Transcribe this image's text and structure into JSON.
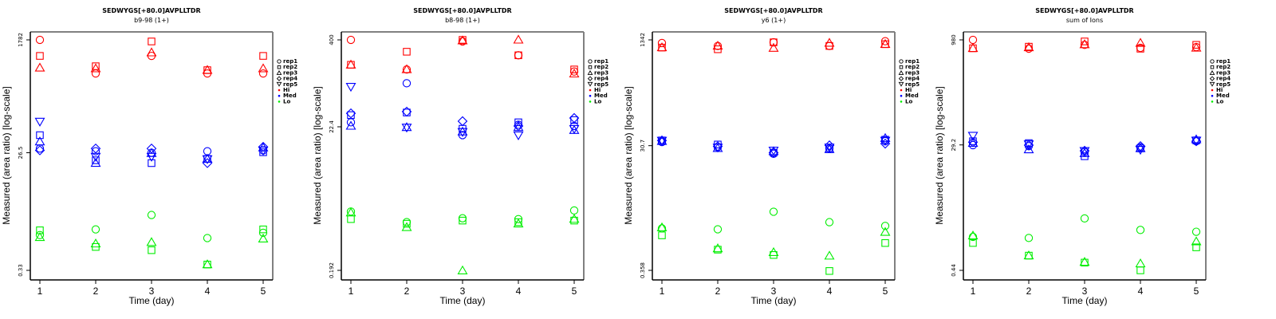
{
  "colors": {
    "Hi": "#ff0000",
    "Med": "#0000ff",
    "Lo": "#00ee00",
    "axis": "#000000",
    "box": "#808080"
  },
  "legend": {
    "items": [
      {
        "label": "rep1",
        "symbol": "circle"
      },
      {
        "label": "rep2",
        "symbol": "square"
      },
      {
        "label": "rep3",
        "symbol": "triangle-up"
      },
      {
        "label": "rep4",
        "symbol": "diamond"
      },
      {
        "label": "rep5",
        "symbol": "triangle-down"
      },
      {
        "label": "Hi",
        "symbol": "dot",
        "color": "#ff0000"
      },
      {
        "label": "Med",
        "symbol": "dot",
        "color": "#0000ff"
      },
      {
        "label": "Lo",
        "symbol": "dot",
        "color": "#00ee00"
      }
    ],
    "placement": "right"
  },
  "chart_data": [
    {
      "type": "scatter",
      "title": "SEDWYGS[+80.0]AVPLLTDR",
      "subtitle": "b9-98 (1+)",
      "xlabel": "Time (day)",
      "ylabel": "Measured (area ratio) [log-scale]",
      "x_ticks": [
        "1",
        "2",
        "3",
        "4",
        "5"
      ],
      "y_scale": "log",
      "y_ticks": [
        "1782",
        "26.5",
        "0.33"
      ],
      "y_tick_values": [
        1782,
        26.5,
        0.33
      ],
      "ylim": [
        0.27,
        2400
      ],
      "x": [
        1,
        2,
        3,
        4,
        5
      ],
      "series": [
        {
          "name": "Hi",
          "reps": [
            [
              1782,
              509,
              980,
              509,
              509
            ],
            [
              980,
              667,
              1680,
              576,
              980
            ],
            [
              628,
              611,
              1107,
              576,
              611
            ],
            [],
            []
          ]
        },
        {
          "name": "Med",
          "reps": [
            [
              31,
              28,
              26.5,
              28,
              29
            ],
            [
              51,
              20,
              18,
              21,
              27
            ],
            [
              40,
              18,
              26,
              21,
              32
            ],
            [
              29,
              31,
              31,
              18,
              33
            ],
            [
              85,
              23,
              23,
              21,
              29
            ]
          ]
        },
        {
          "name": "Lo",
          "reps": [
            [
              1.23,
              1.52,
              2.6,
              1.1,
              1.34
            ],
            [
              1.47,
              0.79,
              0.7,
              0.41,
              1.52
            ],
            [
              1.13,
              0.89,
              0.94,
              0.41,
              1.07
            ],
            [],
            []
          ]
        }
      ]
    },
    {
      "type": "scatter",
      "title": "SEDWYGS[+80.0]AVPLLTDR",
      "subtitle": "b8-98 (1+)",
      "xlabel": "Time (day)",
      "ylabel": "Measured (area ratio) [log-scale]",
      "x_ticks": [
        "1",
        "2",
        "3",
        "4",
        "5"
      ],
      "y_scale": "log",
      "y_ticks": [
        "400",
        "22.4",
        "0.192"
      ],
      "y_tick_values": [
        400,
        22.4,
        0.192
      ],
      "ylim": [
        0.16,
        520
      ],
      "x": [
        1,
        2,
        3,
        4,
        5
      ],
      "series": [
        {
          "name": "Hi",
          "reps": [
            [
              400,
              150,
              380,
              240,
              140
            ],
            [
              175,
              270,
              400,
              240,
              150
            ],
            [
              175,
              150,
              390,
              400,
              130
            ],
            [],
            []
          ]
        },
        {
          "name": "Med",
          "reps": [
            [
              26,
              95,
              17,
              24,
              23
            ],
            [
              33,
              36,
              21,
              26,
              28
            ],
            [
              23,
              22,
              19,
              22,
              20
            ],
            [
              35,
              37,
              27,
              23,
              30
            ],
            [
              85,
              22,
              19,
              17,
              21
            ]
          ]
        },
        {
          "name": "Lo",
          "reps": [
            [
              1.35,
              0.95,
              1.08,
              1.05,
              1.4
            ],
            [
              1.05,
              0.9,
              1.0,
              0.95,
              1.0
            ],
            [
              1.3,
              0.8,
              0.19,
              0.9,
              1.05
            ],
            [],
            []
          ]
        }
      ]
    },
    {
      "type": "scatter",
      "title": "SEDWYGS[+80.0]AVPLLTDR",
      "subtitle": "y6 (1+)",
      "xlabel": "Time (day)",
      "ylabel": "Measured (area ratio) [log-scale]",
      "x_ticks": [
        "1",
        "2",
        "3",
        "4",
        "5"
      ],
      "y_scale": "log",
      "y_ticks": [
        "1342",
        "30.7",
        "0.358"
      ],
      "y_tick_values": [
        1342,
        30.7,
        0.358
      ],
      "ylim": [
        0.29,
        1750
      ],
      "x": [
        1,
        2,
        3,
        4,
        5
      ],
      "series": [
        {
          "name": "Hi",
          "reps": [
            [
              1200,
              1080,
              1230,
              1080,
              1280
            ],
            [
              1020,
              960,
              1230,
              1080,
              1150
            ],
            [
              1020,
              1080,
              1000,
              1200,
              1150
            ],
            [],
            []
          ]
        },
        {
          "name": "Med",
          "reps": [
            [
              35,
              29,
              23,
              28,
              36
            ],
            [
              37,
              32,
              24,
              27,
              38
            ],
            [
              36,
              28,
              25,
              27,
              40
            ],
            [
              37,
              30,
              24,
              31,
              33
            ],
            [
              37,
              29,
              26,
              29,
              37
            ]
          ]
        },
        {
          "name": "Lo",
          "reps": [
            [
              1.6,
              1.55,
              2.9,
              2.0,
              1.75
            ],
            [
              1.25,
              0.75,
              0.62,
              0.35,
              0.95
            ],
            [
              1.65,
              0.78,
              0.68,
              0.6,
              1.4
            ],
            [],
            []
          ]
        }
      ]
    },
    {
      "type": "scatter",
      "title": "SEDWYGS[+80.0]AVPLLTDR",
      "subtitle": "sum of Ions",
      "xlabel": "Time (day)",
      "ylabel": "Measured (area ratio) [log-scale]",
      "x_ticks": [
        "1",
        "2",
        "3",
        "4",
        "5"
      ],
      "y_scale": "log",
      "y_ticks": [
        "980",
        "29.2",
        "0.44"
      ],
      "y_tick_values": [
        980,
        29.2,
        0.44
      ],
      "ylim": [
        0.36,
        1280
      ],
      "x": [
        1,
        2,
        3,
        4,
        5
      ],
      "series": [
        {
          "name": "Hi",
          "reps": [
            [
              980,
              730,
              830,
              750,
              770
            ],
            [
              740,
              780,
              930,
              730,
              830
            ],
            [
              740,
              760,
              840,
              880,
              750
            ],
            [],
            []
          ]
        },
        {
          "name": "Med",
          "reps": [
            [
              29,
              28,
              23,
              27,
              33
            ],
            [
              33,
              31,
              20,
              26,
              34
            ],
            [
              31,
              25,
              22,
              26,
              35
            ],
            [
              32,
              29,
              24,
              28,
              33
            ],
            [
              40,
              30,
              24,
              25,
              34
            ]
          ]
        },
        {
          "name": "Lo",
          "reps": [
            [
              1.35,
              1.3,
              2.5,
              1.7,
              1.6
            ],
            [
              1.1,
              0.72,
              0.57,
              0.44,
              0.95
            ],
            [
              1.4,
              0.72,
              0.58,
              0.55,
              1.15
            ],
            [],
            []
          ]
        }
      ]
    }
  ]
}
